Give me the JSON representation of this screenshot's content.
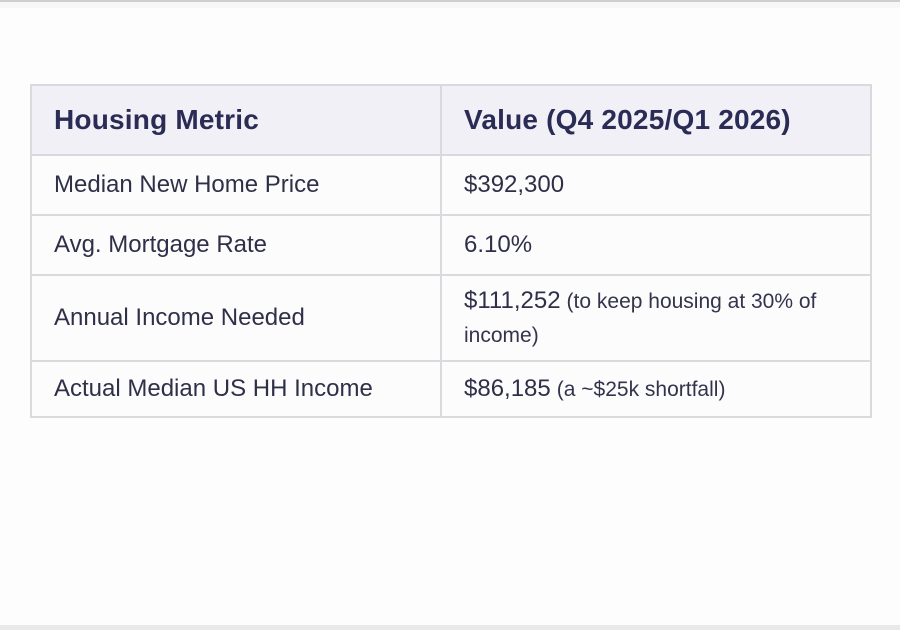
{
  "colors": {
    "header_bg": "#f1f0f6",
    "header_text": "#2a2c55",
    "body_text": "#2f3048",
    "border": "#d9d9de",
    "row_bg": "#fcfcfd",
    "page_bg": "#fdfdfe"
  },
  "chart_data": {
    "type": "table",
    "columns": [
      "Housing Metric",
      "Value (Q4 2025/Q1 2026)"
    ],
    "rows": [
      {
        "metric": "Median New Home Price",
        "value": "$392,300",
        "note": ""
      },
      {
        "metric": "Avg. Mortgage Rate",
        "value": "6.10%",
        "note": ""
      },
      {
        "metric": "Annual Income Needed",
        "value": "$111,252",
        "note": "(to keep housing at 30% of income)"
      },
      {
        "metric": "Actual Median US HH Income",
        "value": "$86,185",
        "note": "(a ~$25k shortfall)"
      }
    ]
  }
}
